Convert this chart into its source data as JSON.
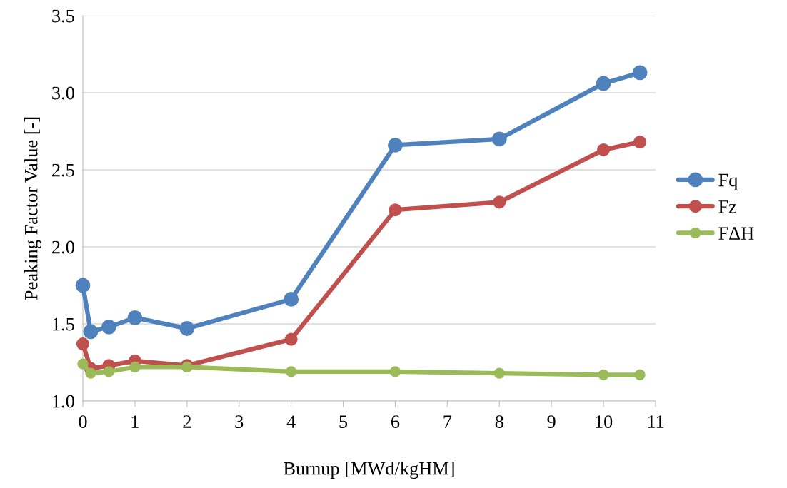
{
  "chart_data": {
    "type": "line",
    "xlabel": "Burnup [MWd/kgHM]",
    "ylabel": "Peaking Factor Value [-]",
    "x": [
      0,
      0.15,
      0.5,
      1,
      2,
      4,
      6,
      8,
      10,
      10.7
    ],
    "series": [
      {
        "name": "Fq",
        "color": "#4f81bd",
        "values": [
          1.75,
          1.45,
          1.48,
          1.54,
          1.47,
          1.66,
          2.66,
          2.7,
          3.06,
          3.13
        ]
      },
      {
        "name": "Fz",
        "color": "#c0504d",
        "values": [
          1.37,
          1.21,
          1.23,
          1.26,
          1.23,
          1.4,
          2.24,
          2.29,
          2.63,
          2.68
        ]
      },
      {
        "name": "FΔH",
        "color": "#9bbb59",
        "values": [
          1.24,
          1.18,
          1.19,
          1.22,
          1.22,
          1.19,
          1.19,
          1.18,
          1.17,
          1.17
        ]
      }
    ],
    "xlim": [
      0,
      11
    ],
    "xticks": [
      0,
      1,
      2,
      3,
      4,
      5,
      6,
      7,
      8,
      9,
      10,
      11
    ],
    "ylim": [
      1.0,
      3.5
    ],
    "yticks": [
      {
        "value": 1.0,
        "label": "1.0"
      },
      {
        "value": 1.5,
        "label": "1.5"
      },
      {
        "value": 2.0,
        "label": "2.0"
      },
      {
        "value": 2.5,
        "label": "2.5"
      },
      {
        "value": 3.0,
        "label": "3.0"
      },
      {
        "value": 3.5,
        "label": "3.5"
      }
    ],
    "grid": "y",
    "legend": "right",
    "marker": "circle",
    "line_style": "solid"
  }
}
